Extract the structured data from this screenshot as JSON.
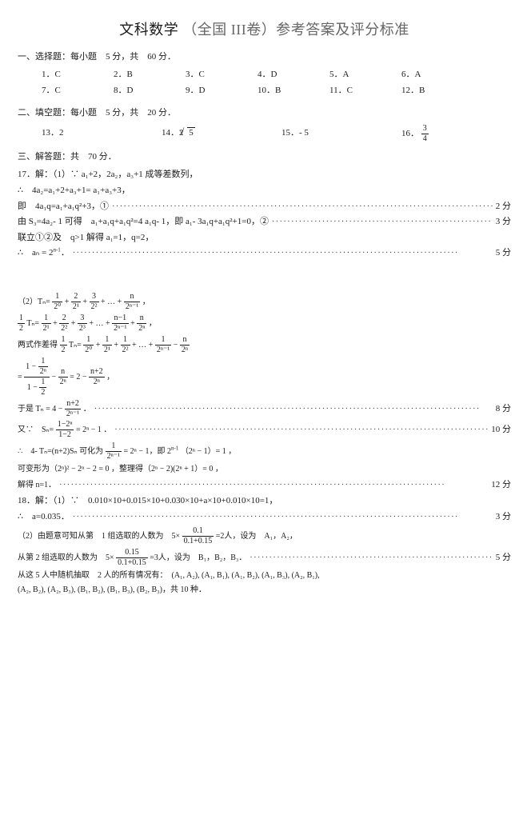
{
  "title_main": "文科数学",
  "title_grey": "（全国 III卷）参考答案及评分标准",
  "section1": "一、选择题：每小题　5 分，共　60 分．",
  "mc": [
    "1．C",
    "2．B",
    "3．C",
    "4．D",
    "5．A",
    "6．A",
    "7．C",
    "8．D",
    "9．D",
    "10．B",
    "11．C",
    "12．B"
  ],
  "section2": "二、填空题：每小题　5 分，共　20 分．",
  "fill13": "13．2",
  "fill14": "14．2",
  "fill14sqrt": "5",
  "fill15": "15．- 5",
  "fill16": "16．",
  "fill16frac_num": "3",
  "fill16frac_den": "4",
  "section3": "三、解答题：共　70 分．",
  "q17_head": "17．解：（1）∵ a₁+2，2a₂，a₃+1 成等差数列，",
  "q17_l1": "∴　4a₂=a₁+2+a₃+1= a₁+a₃+3，",
  "q17_l2": "即　4a₁q=a₁+a₁q²+3，①",
  "q17_l2_pts": "2 分",
  "q17_l3": "由 S₃=4a₂- 1 可得　a₁+a₁q+a₁q²=4 a₁q- 1，即 a₁- 3a₁q+a₁q²+1=0，②",
  "q17_l3_pts": "3 分",
  "q17_l4": "联立①②及　q>1 解得 a₁=1，q=2，",
  "q17_l5a": "∴　aₙ = 2",
  "q17_l5b": "．",
  "q17_l5_pts": "5 分",
  "q17_2_head": "（2）Tₙ=",
  "q17_2_l2": "Tₙ=",
  "q17_2_l3": "两式作差得",
  "q17_2_tn": "Tₙ=",
  "q17_2_eq_end": "= 2 −",
  "q17_2_l5": "于是 Tₙ = 4 −",
  "q17_2_l5_pts": "8 分",
  "q17_2_l6": "又∵　Sₙ=",
  "q17_2_l6b": "= 2ⁿ − 1 ．",
  "q17_2_l6_pts": "10 分",
  "q17_2_l7a": "∴　4- Tₙ=(n+2)Sₙ 可化为",
  "q17_2_l7b": "= 2ⁿ − 1，即 2",
  "q17_2_l7c": "（2ⁿ − 1）= 1 ，",
  "q17_2_l8": "可变形为（2ⁿ)² − 2ⁿ − 2 = 0 ，整理得（2ⁿ − 2)(2ⁿ + 1）= 0 ，",
  "q17_2_l9": "解得 n=1．",
  "q17_2_l9_pts": "12 分",
  "q18_head": "18．解：（1）∵　0.010×10+0.015×10+0.030×10+a×10+0.010×10=1，",
  "q18_l1": "∴　a=0.035．",
  "q18_l1_pts": "3 分",
  "q18_2_head": "（2）由题意可知从第　1 组选取的人数为　5×",
  "q18_2_head_b": "=2人，设为　A₁，A₂，",
  "q18_2_l1a": "从第 2 组选取的人数为　5×",
  "q18_2_l1b": "=3人，设为　B₁，B₂，B₃．",
  "q18_2_l1_pts": "5 分",
  "q18_2_l2": "从这 5 人中随机抽取　2 人的所有情况有：　(A₁, A₂), (A₁, B₁), (A₁, B₂), (A₁, B₃), (A₂, B₁),",
  "q18_2_l3": "(A₂, B₂), (A₂, B₃), (B₁, B₂), (B₁, B₃), (B₂, B₃)，共 10 种．",
  "dots": "····································································································",
  "fr": {
    "one": "1",
    "two": "2",
    "three": "3",
    "n": "n",
    "nm1": "n−1",
    "np2": "n+2",
    "t0": "2⁰",
    "t1": "2¹",
    "t2": "2²",
    "t3": "2³",
    "tn": "2ⁿ",
    "tn1": "2ⁿ⁻¹",
    "tn_exp": "2ⁿ⁻¹",
    "half_num": "1",
    "half_den": "2",
    "s_num": "1−2ⁿ",
    "s_den": "1−2",
    "p1_num": "0.1",
    "p1_den": "0.1+0.15",
    "p2_num": "0.15",
    "p2_den": "0.1+0.15",
    "inner_num": "1",
    "inner_den": "2ⁿ",
    "inner2_num": "1",
    "inner2_den": "2"
  }
}
